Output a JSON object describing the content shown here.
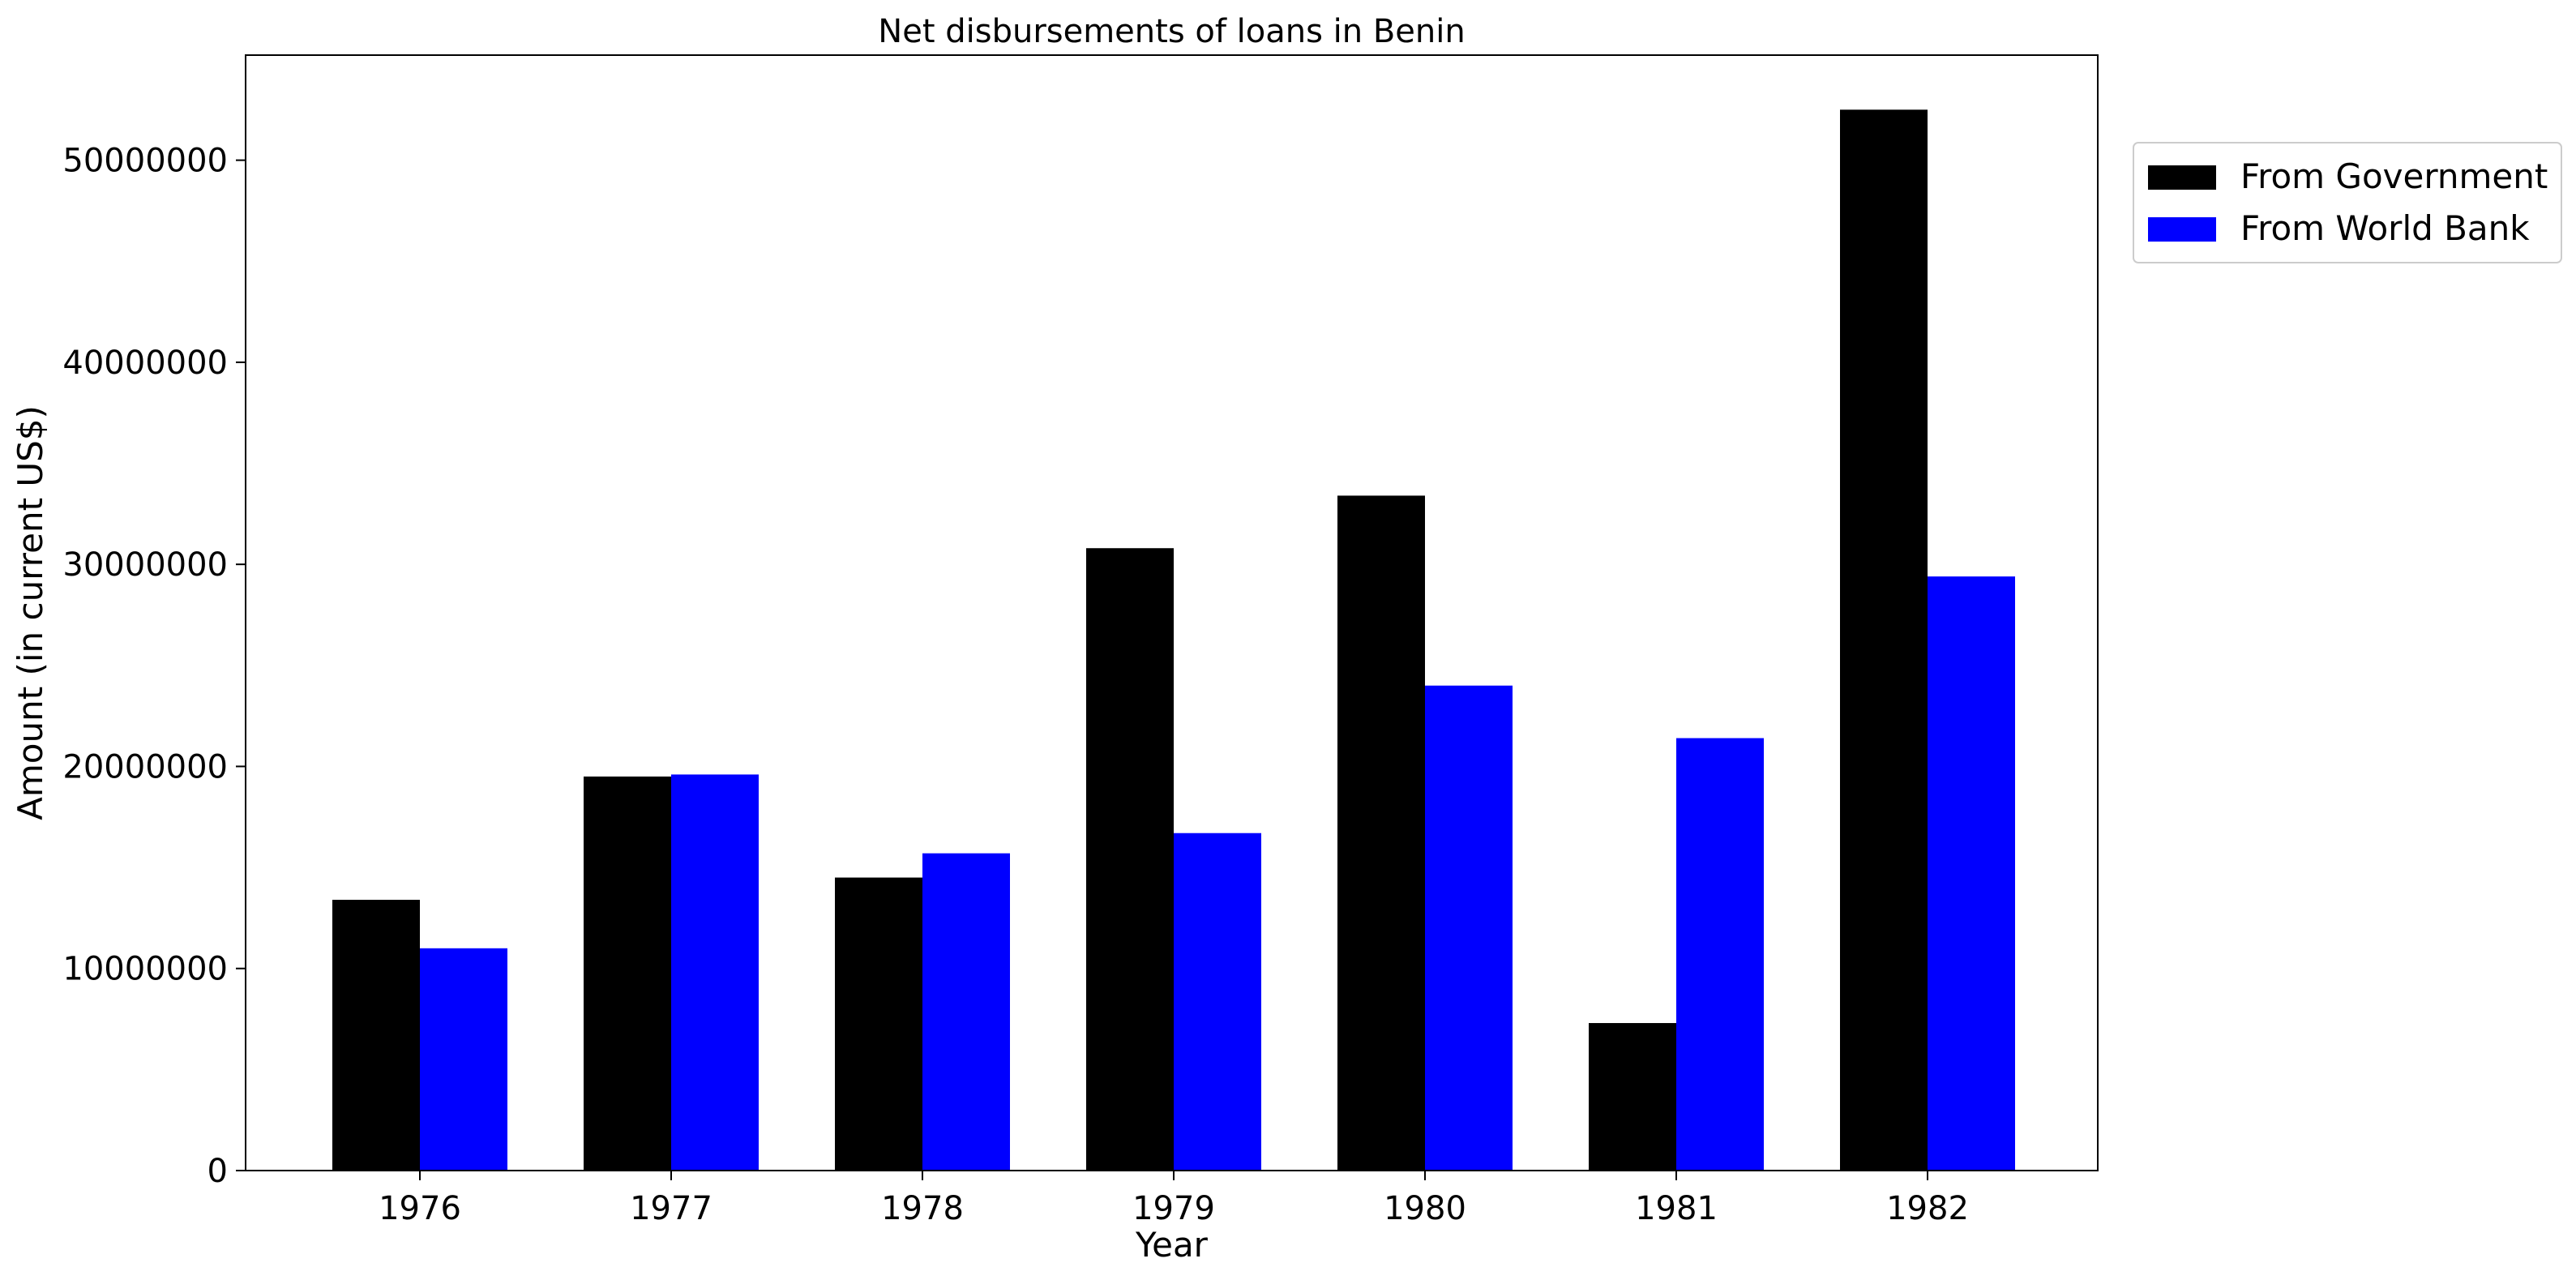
{
  "chart_data": {
    "type": "bar",
    "title": "Net disbursements of loans in Benin",
    "xlabel": "Year",
    "ylabel": "Amount (in current US$)",
    "categories": [
      "1976",
      "1977",
      "1978",
      "1979",
      "1980",
      "1981",
      "1982"
    ],
    "series": [
      {
        "name": "From Government",
        "color": "#000000",
        "values": [
          13400000,
          19500000,
          14500000,
          30800000,
          33400000,
          7300000,
          52500000
        ]
      },
      {
        "name": "From World Bank",
        "color": "#0000ff",
        "values": [
          11000000,
          19600000,
          15700000,
          16700000,
          24000000,
          21400000,
          29400000
        ]
      }
    ],
    "ylim": [
      0,
      55200000
    ],
    "yticks": [
      0,
      10000000,
      20000000,
      30000000,
      40000000,
      50000000
    ],
    "ytick_labels": [
      "0",
      "10000000",
      "20000000",
      "30000000",
      "40000000",
      "50000000"
    ],
    "grid": false,
    "legend_position": "outside-top-right"
  }
}
